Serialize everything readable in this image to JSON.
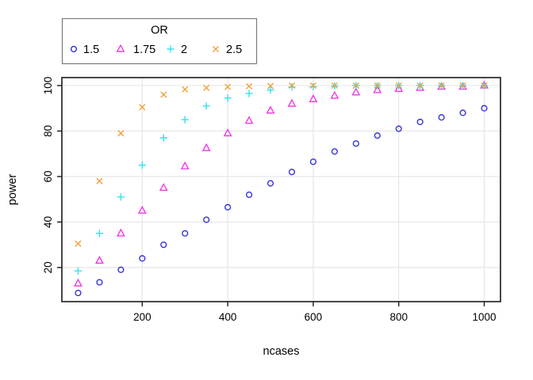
{
  "chart_data": {
    "type": "scatter",
    "title": "",
    "xlabel": "ncases",
    "ylabel": "power",
    "x": [
      50,
      100,
      150,
      200,
      250,
      300,
      350,
      400,
      450,
      500,
      550,
      600,
      650,
      700,
      750,
      800,
      850,
      900,
      950,
      1000
    ],
    "series": [
      {
        "name": "1.5",
        "marker": "circle",
        "color": "#3434d9",
        "values": [
          8.8,
          13.5,
          19,
          24,
          30,
          35,
          41,
          46.5,
          52,
          57,
          62,
          66.5,
          71,
          74.5,
          78,
          81,
          84,
          86,
          88,
          90
        ]
      },
      {
        "name": "1.75",
        "marker": "triangle",
        "color": "#f13be4",
        "values": [
          13,
          23,
          35,
          45,
          55,
          64.5,
          72.5,
          79,
          84.5,
          89,
          92,
          94,
          95.5,
          97,
          98,
          98.5,
          99,
          99.5,
          99.5,
          100
        ]
      },
      {
        "name": "2",
        "marker": "plus",
        "color": "#35e0ee",
        "values": [
          18.5,
          35,
          51,
          65,
          77,
          85,
          91,
          94.5,
          96.5,
          98,
          99.3,
          99.5,
          99.8,
          100,
          100,
          100,
          100,
          100,
          100,
          100
        ]
      },
      {
        "name": "2.5",
        "marker": "x",
        "color": "#f0a23c",
        "values": [
          30.5,
          58,
          79,
          90.5,
          96,
          98.3,
          99,
          99.4,
          99.7,
          99.8,
          100,
          100,
          100,
          100,
          100,
          100,
          100,
          100,
          100,
          100
        ]
      }
    ],
    "xticks": [
      200,
      400,
      600,
      800,
      1000
    ],
    "yticks": [
      20,
      40,
      60,
      80,
      100
    ],
    "xlim": [
      12,
      1038
    ],
    "ylim": [
      5,
      103.5
    ],
    "grid": true,
    "grid_color": "#e6e6e6",
    "axis_color": "#1a1a1a",
    "text_color": "#000000",
    "legend": {
      "title": "OR",
      "position": "top-left",
      "entries": [
        "1.5",
        "1.75",
        "2",
        "2.5"
      ]
    }
  }
}
